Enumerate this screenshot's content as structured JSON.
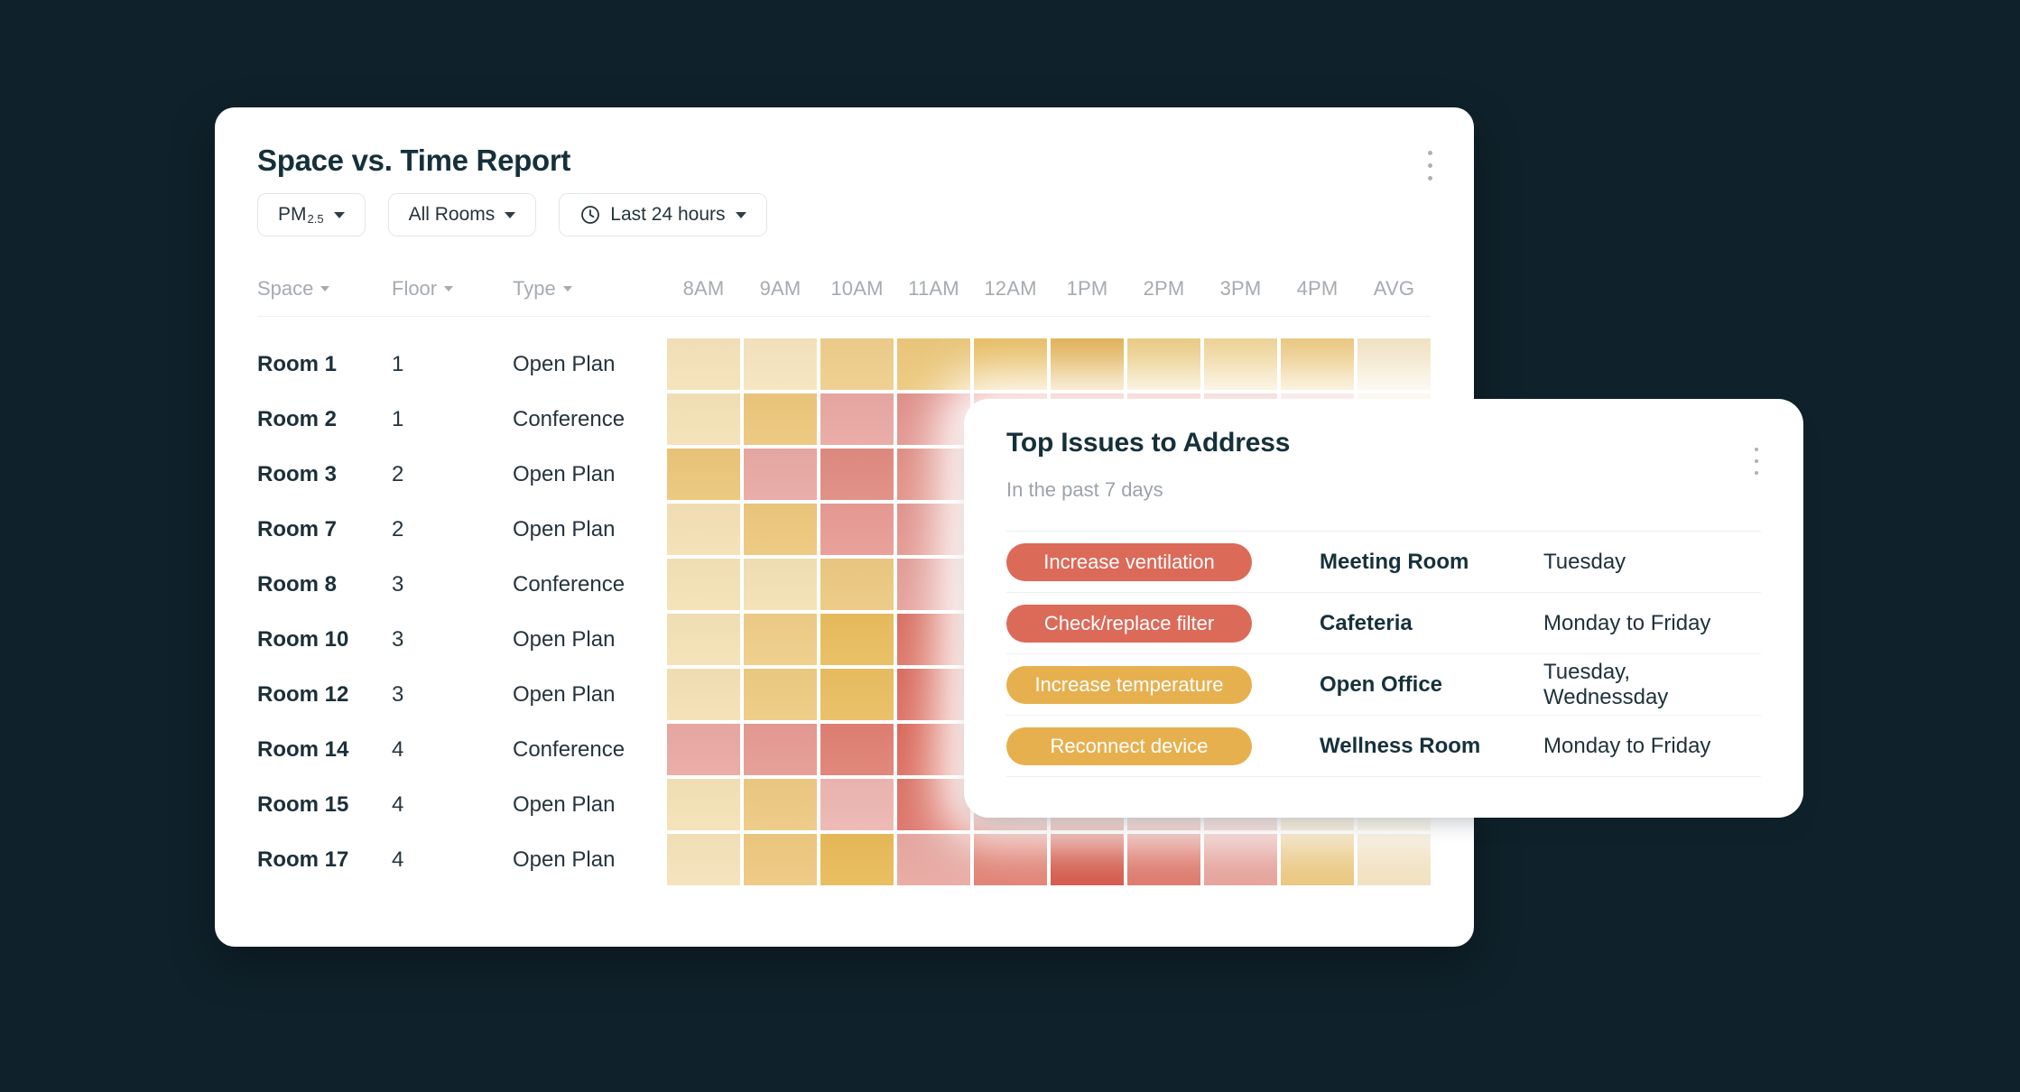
{
  "page": {
    "background": "#0F212A"
  },
  "report_card": {
    "title": "Space vs. Time Report",
    "menu_icon": "kebab-menu",
    "filters": {
      "metric": {
        "label": "PM",
        "subscript": "2.5"
      },
      "rooms": {
        "label": "All Rooms"
      },
      "range": {
        "label": "Last 24 hours",
        "icon": "clock"
      }
    },
    "table": {
      "sort_columns": [
        "Space",
        "Floor",
        "Type"
      ],
      "time_columns": [
        "8AM",
        "9AM",
        "10AM",
        "11AM",
        "12AM",
        "1PM",
        "2PM",
        "3PM",
        "4PM",
        "AVG"
      ],
      "rows": [
        {
          "space": "Room 1",
          "floor": "1",
          "type": "Open Plan"
        },
        {
          "space": "Room 2",
          "floor": "1",
          "type": "Conference"
        },
        {
          "space": "Room 3",
          "floor": "2",
          "type": "Open Plan"
        },
        {
          "space": "Room 7",
          "floor": "2",
          "type": "Open Plan"
        },
        {
          "space": "Room 8",
          "floor": "3",
          "type": "Conference"
        },
        {
          "space": "Room 10",
          "floor": "3",
          "type": "Open Plan"
        },
        {
          "space": "Room 12",
          "floor": "3",
          "type": "Open Plan"
        },
        {
          "space": "Room 14",
          "floor": "4",
          "type": "Conference"
        },
        {
          "space": "Room 15",
          "floor": "4",
          "type": "Open Plan"
        },
        {
          "space": "Room 17",
          "floor": "4",
          "type": "Open Plan"
        }
      ]
    }
  },
  "chart_data": {
    "type": "heatmap",
    "title": "Space vs. Time Report",
    "x": [
      "8AM",
      "9AM",
      "10AM",
      "11AM",
      "12AM",
      "1PM",
      "2PM",
      "3PM",
      "4PM",
      "AVG"
    ],
    "y": [
      "Room 1",
      "Room 2",
      "Room 3",
      "Room 7",
      "Room 8",
      "Room 10",
      "Room 12",
      "Room 14",
      "Room 15",
      "Room 17"
    ],
    "value_encoding": "color only (yellow = low, red = high); no numeric labels shown",
    "cell_colors": [
      [
        "#F4E2B9",
        "#F5E4BE",
        "#EFCE8C",
        "#ECC87B",
        "#E9BF63",
        "#E3B254",
        "#EBCB80",
        "#F0D494",
        "#ECC87C",
        "#F3E5C3"
      ],
      [
        "#F4E1B7",
        "#ECC77C",
        "#E9A8A3",
        "#E2908A",
        "#DB6456",
        "#D05245",
        "#D5594C",
        "#D8675A",
        "#E59C93",
        "#F1DFBE"
      ],
      [
        "#EBC67A",
        "#E8A9A4",
        "#E08B81",
        "#E08C82",
        "#DB7266",
        "#D5604F",
        "#D86453",
        "#DD7A6E",
        "#E8A79F",
        "#F0DDBA"
      ],
      [
        "#F4E0B4",
        "#EDC87D",
        "#E89B94",
        "#E2928B",
        "#DC7163",
        "#D25243",
        "#D65C4D",
        "#DA6F61",
        "#E6A29A",
        "#F1DFBD"
      ],
      [
        "#F4E1B6",
        "#F3E0B5",
        "#ECC982",
        "#E39B94",
        "#DE7E71",
        "#D65F50",
        "#DA6A5B",
        "#DE8276",
        "#E9AEA7",
        "#F2E1C0"
      ],
      [
        "#F4E1B6",
        "#EECD87",
        "#E9BD5E",
        "#DA6E5F",
        "#D4584A",
        "#CC4334",
        "#D25040",
        "#D96758",
        "#E49A91",
        "#F0DCB8"
      ],
      [
        "#F4E0B4",
        "#EDCB82",
        "#E9BE61",
        "#DA695B",
        "#D35447",
        "#CB4132",
        "#D14E3F",
        "#D86455",
        "#E39790",
        "#F0DBB7"
      ],
      [
        "#EAA9A4",
        "#E59B93",
        "#E08073",
        "#DB6757",
        "#D04C3D",
        "#C93E2F",
        "#CF4A3B",
        "#D65F50",
        "#E18E85",
        "#EFD9B5"
      ],
      [
        "#F4E1B6",
        "#EDC982",
        "#EDB6B1",
        "#DC7164",
        "#D25244",
        "#CC4234",
        "#D66153",
        "#DE8379",
        "#E3C07B",
        "#E9D8AC"
      ],
      [
        "#F4E2B9",
        "#EDC87F",
        "#E8BB59",
        "#E8A8A1",
        "#DF7A6C",
        "#D14E3E",
        "#DB6F61",
        "#E49C94",
        "#E9C478",
        "#F0E0BC"
      ]
    ]
  },
  "issues_card": {
    "title": "Top Issues to Address",
    "subtitle": "In the past 7 days",
    "menu_icon": "kebab-menu",
    "pill_colors": {
      "red": "#DC6A59",
      "amber": "#E7B04F"
    },
    "rows": [
      {
        "action": "Increase ventilation",
        "severity": "red",
        "room": "Meeting Room",
        "days": "Tuesday"
      },
      {
        "action": "Check/replace filter",
        "severity": "red",
        "room": "Cafeteria",
        "days": "Monday to Friday"
      },
      {
        "action": "Increase temperature",
        "severity": "amber",
        "room": "Open Office",
        "days": "Tuesday, Wednessday"
      },
      {
        "action": "Reconnect device",
        "severity": "amber",
        "room": "Wellness Room",
        "days": "Monday to Friday"
      }
    ]
  }
}
